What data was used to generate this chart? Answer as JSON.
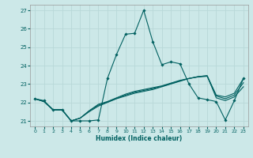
{
  "xlabel": "Humidex (Indice chaleur)",
  "background_color": "#cce8e8",
  "grid_color": "#b8d8d8",
  "line_color": "#006060",
  "xlim": [
    -0.5,
    23.5
  ],
  "ylim": [
    20.7,
    27.3
  ],
  "yticks": [
    21,
    22,
    23,
    24,
    25,
    26,
    27
  ],
  "xticks": [
    0,
    1,
    2,
    3,
    4,
    5,
    6,
    7,
    8,
    9,
    10,
    11,
    12,
    13,
    14,
    15,
    16,
    17,
    18,
    19,
    20,
    21,
    22,
    23
  ],
  "series_main": [
    22.2,
    22.1,
    21.6,
    21.6,
    21.0,
    21.0,
    21.0,
    21.05,
    23.3,
    24.6,
    25.7,
    25.75,
    27.0,
    25.3,
    24.05,
    24.2,
    24.1,
    23.0,
    22.25,
    22.15,
    22.05,
    21.05,
    22.1,
    23.3
  ],
  "series_flat1": [
    22.2,
    22.05,
    21.6,
    21.6,
    21.0,
    21.15,
    21.5,
    21.8,
    22.0,
    22.2,
    22.35,
    22.5,
    22.6,
    22.7,
    22.85,
    23.0,
    23.15,
    23.3,
    23.4,
    23.45,
    22.4,
    22.3,
    22.5,
    23.3
  ],
  "series_flat2": [
    22.2,
    22.05,
    21.6,
    21.6,
    21.0,
    21.15,
    21.55,
    21.9,
    22.05,
    22.25,
    22.45,
    22.6,
    22.7,
    22.8,
    22.9,
    23.05,
    23.2,
    23.3,
    23.4,
    23.45,
    22.25,
    22.1,
    22.3,
    22.85
  ],
  "series_flat3": [
    22.2,
    22.05,
    21.6,
    21.6,
    21.0,
    21.15,
    21.55,
    21.85,
    22.02,
    22.22,
    22.4,
    22.55,
    22.65,
    22.75,
    22.87,
    23.02,
    23.17,
    23.3,
    23.38,
    23.42,
    22.35,
    22.2,
    22.4,
    23.07
  ]
}
